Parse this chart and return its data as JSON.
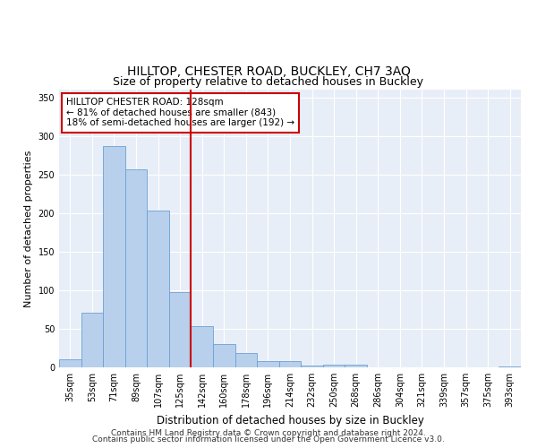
{
  "title": "HILLTOP, CHESTER ROAD, BUCKLEY, CH7 3AQ",
  "subtitle": "Size of property relative to detached houses in Buckley",
  "xlabel": "Distribution of detached houses by size in Buckley",
  "ylabel": "Number of detached properties",
  "categories": [
    "35sqm",
    "53sqm",
    "71sqm",
    "89sqm",
    "107sqm",
    "125sqm",
    "142sqm",
    "160sqm",
    "178sqm",
    "196sqm",
    "214sqm",
    "232sqm",
    "250sqm",
    "268sqm",
    "286sqm",
    "304sqm",
    "321sqm",
    "339sqm",
    "357sqm",
    "375sqm",
    "393sqm"
  ],
  "values": [
    10,
    71,
    287,
    257,
    203,
    97,
    53,
    30,
    19,
    8,
    8,
    2,
    4,
    4,
    0,
    0,
    0,
    0,
    0,
    0,
    1
  ],
  "bar_color": "#B8D0EC",
  "bar_edge_color": "#6CA0D4",
  "vline_x": 5.5,
  "vline_color": "#CC0000",
  "annotation_title": "HILLTOP CHESTER ROAD: 128sqm",
  "annotation_line1": "← 81% of detached houses are smaller (843)",
  "annotation_line2": "18% of semi-detached houses are larger (192) →",
  "annotation_box_color": "#CC0000",
  "ylim": [
    0,
    360
  ],
  "yticks": [
    0,
    50,
    100,
    150,
    200,
    250,
    300,
    350
  ],
  "background_color": "#E8EEF7",
  "footer1": "Contains HM Land Registry data © Crown copyright and database right 2024.",
  "footer2": "Contains public sector information licensed under the Open Government Licence v3.0.",
  "title_fontsize": 10,
  "xlabel_fontsize": 8.5,
  "ylabel_fontsize": 8,
  "tick_fontsize": 7,
  "annot_fontsize": 7.5
}
